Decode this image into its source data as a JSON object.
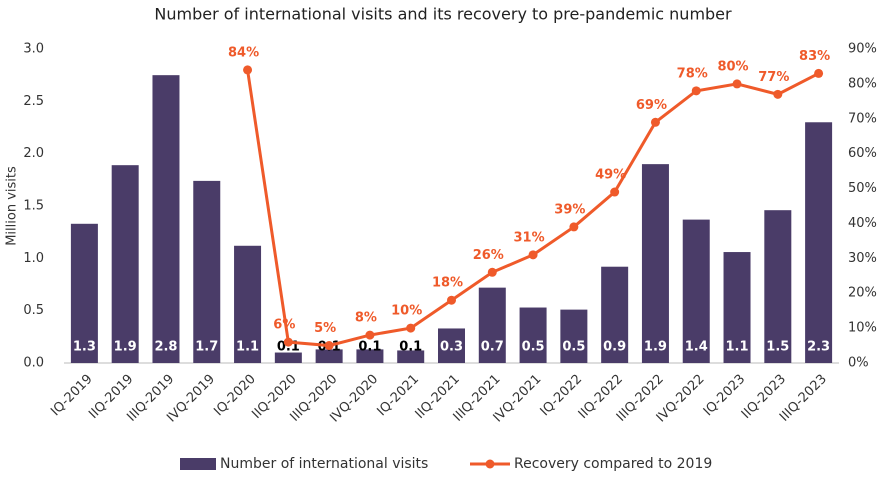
{
  "chart_data": {
    "type": "bar_line",
    "title": "Number of international visits and its recovery to pre-pandemic number",
    "y_label": "Million visits",
    "categories": [
      "IQ-2019",
      "IIQ-2019",
      "IIIQ-2019",
      "IVQ-2019",
      "IQ-2020",
      "IIQ-2020",
      "IIIQ-2020",
      "IVQ-2020",
      "IQ-2021",
      "IIQ-2021",
      "IIIQ-2021",
      "IVQ-2021",
      "IQ-2022",
      "IIQ-2022",
      "IIIQ-2022",
      "IVQ-2022",
      "IQ-2023",
      "IIQ-2023",
      "IIIQ-2023"
    ],
    "series": [
      {
        "name": "Number of international visits",
        "type": "bar",
        "color": "#4a3c68",
        "values": [
          1.33,
          1.89,
          2.75,
          1.74,
          1.12,
          0.1,
          0.13,
          0.13,
          0.12,
          0.33,
          0.72,
          0.53,
          0.51,
          0.92,
          1.9,
          1.37,
          1.06,
          1.46,
          2.3
        ],
        "value_labels": [
          "1.3",
          "1.9",
          "2.8",
          "1.7",
          "1.1",
          "0.1",
          "0.1",
          "0.1",
          "0.1",
          "0.3",
          "0.7",
          "0.5",
          "0.5",
          "0.9",
          "1.9",
          "1.4",
          "1.1",
          "1.5",
          "2.3"
        ]
      },
      {
        "name": "Recovery compared to 2019",
        "type": "line",
        "axis": "y2",
        "color": "#ef5a2a",
        "values": [
          null,
          null,
          null,
          null,
          84,
          6,
          5,
          8,
          10,
          18,
          26,
          31,
          39,
          49,
          69,
          78,
          80,
          77,
          83
        ],
        "value_labels": [
          null,
          null,
          null,
          null,
          "84%",
          "6%",
          "5%",
          "8%",
          "10%",
          "18%",
          "26%",
          "31%",
          "39%",
          "49%",
          "69%",
          "78%",
          "80%",
          "77%",
          "83%"
        ]
      }
    ],
    "ylim": [
      0,
      3
    ],
    "yticks": [
      {
        "value": 0,
        "label": "0.0"
      },
      0.5,
      {
        "value": 1,
        "label": "1.0"
      },
      1.5,
      {
        "value": 2,
        "label": "2.0"
      },
      2.5,
      {
        "value": 3,
        "label": "3.0"
      }
    ],
    "y2lim": [
      0,
      90
    ],
    "y2ticks": [
      {
        "value": 0,
        "label": "0%"
      },
      {
        "value": 10,
        "label": "10%"
      },
      {
        "value": 20,
        "label": "20%"
      },
      {
        "value": 30,
        "label": "30%"
      },
      {
        "value": 40,
        "label": "40%"
      },
      {
        "value": 50,
        "label": "50%"
      },
      {
        "value": 60,
        "label": "60%"
      },
      {
        "value": 70,
        "label": "70%"
      },
      {
        "value": 80,
        "label": "80%"
      },
      {
        "value": 90,
        "label": "90%"
      }
    ],
    "legend": "bottom"
  }
}
